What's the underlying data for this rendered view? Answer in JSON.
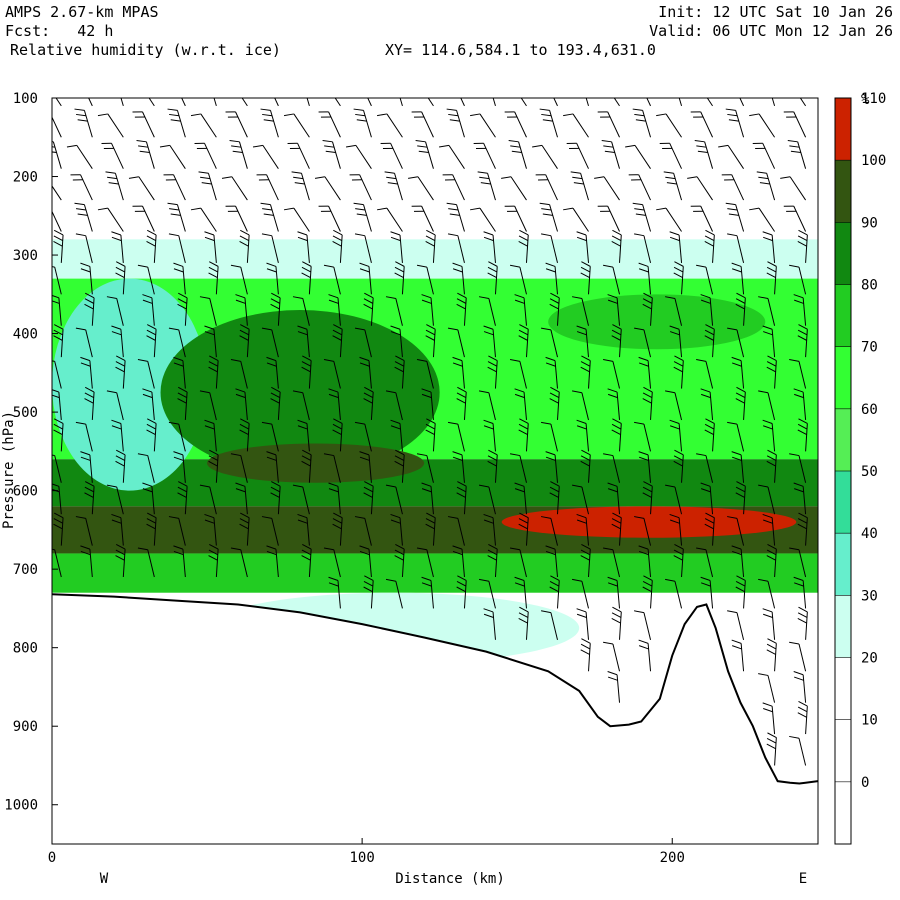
{
  "header": {
    "model": "AMPS 2.67-km MPAS",
    "fcst": "Fcst:   42 h",
    "field": "Relative humidity (w.r.t. ice)",
    "xy": "XY= 114.6,584.1 to 193.4,631.0",
    "init": "Init: 12 UTC Sat 10 Jan 26",
    "valid": "Valid: 06 UTC Mon 12 Jan 26"
  },
  "colors": {
    "frame": "#000000",
    "terrain": "#ffffff"
  },
  "chart_data": {
    "type": "heatmap",
    "title": "Relative humidity (w.r.t. ice)",
    "xlabel": "Distance (km)",
    "ylabel": "Pressure (hPa)",
    "xlim": [
      0,
      247
    ],
    "ylim": [
      1050,
      100
    ],
    "x_ticks": [
      0,
      100,
      200
    ],
    "y_ticks": [
      100,
      200,
      300,
      400,
      500,
      600,
      700,
      800,
      900,
      1000
    ],
    "x_end_labels": {
      "left": "W",
      "right": "E"
    },
    "colorbar": {
      "unit": "%",
      "levels": [
        0,
        10,
        20,
        30,
        40,
        50,
        60,
        70,
        80,
        90,
        100,
        110
      ],
      "colors": [
        "#ffffff",
        "#ffffff",
        "#ffffff",
        "#ccfff0",
        "#66eecc",
        "#33dd99",
        "#55ee55",
        "#33ff33",
        "#22cc22",
        "#118811",
        "#335511",
        "#cc2200"
      ]
    },
    "bands": [
      {
        "p_top": 280,
        "p_bot": 330,
        "rh": 35
      },
      {
        "p_top": 330,
        "p_bot": 560,
        "rh": 75
      },
      {
        "p_top": 560,
        "p_bot": 620,
        "rh": 95
      },
      {
        "p_top": 620,
        "p_bot": 680,
        "rh": 105
      },
      {
        "p_top": 680,
        "p_bot": 730,
        "rh": 80
      }
    ],
    "features": [
      {
        "x0": 0,
        "x1": 50,
        "p_top": 330,
        "p_bot": 600,
        "rh": 45
      },
      {
        "x0": 35,
        "x1": 125,
        "p_top": 370,
        "p_bot": 580,
        "rh": 92
      },
      {
        "x0": 160,
        "x1": 230,
        "p_top": 350,
        "p_bot": 420,
        "rh": 88
      },
      {
        "x0": 50,
        "x1": 120,
        "p_top": 540,
        "p_bot": 590,
        "rh": 103
      },
      {
        "x0": 145,
        "x1": 240,
        "p_top": 620,
        "p_bot": 660,
        "rh": 112
      },
      {
        "x0": 50,
        "x1": 170,
        "p_top": 730,
        "p_bot": 820,
        "rh": 35
      }
    ],
    "terrain": {
      "distance_km": [
        0,
        20,
        40,
        60,
        80,
        100,
        120,
        140,
        160,
        170,
        176,
        180,
        186,
        190,
        196,
        200,
        204,
        208,
        211,
        214,
        218,
        222,
        226,
        230,
        234,
        238,
        241,
        243,
        247
      ],
      "pressure_hpa": [
        732,
        735,
        740,
        745,
        755,
        770,
        787,
        805,
        830,
        855,
        888,
        900,
        898,
        894,
        865,
        810,
        770,
        748,
        745,
        775,
        830,
        870,
        900,
        940,
        970,
        972,
        973,
        972,
        970
      ]
    },
    "wind_barbs": {
      "x_spacing_km": 10,
      "p_spacing_hpa": 40
    }
  }
}
